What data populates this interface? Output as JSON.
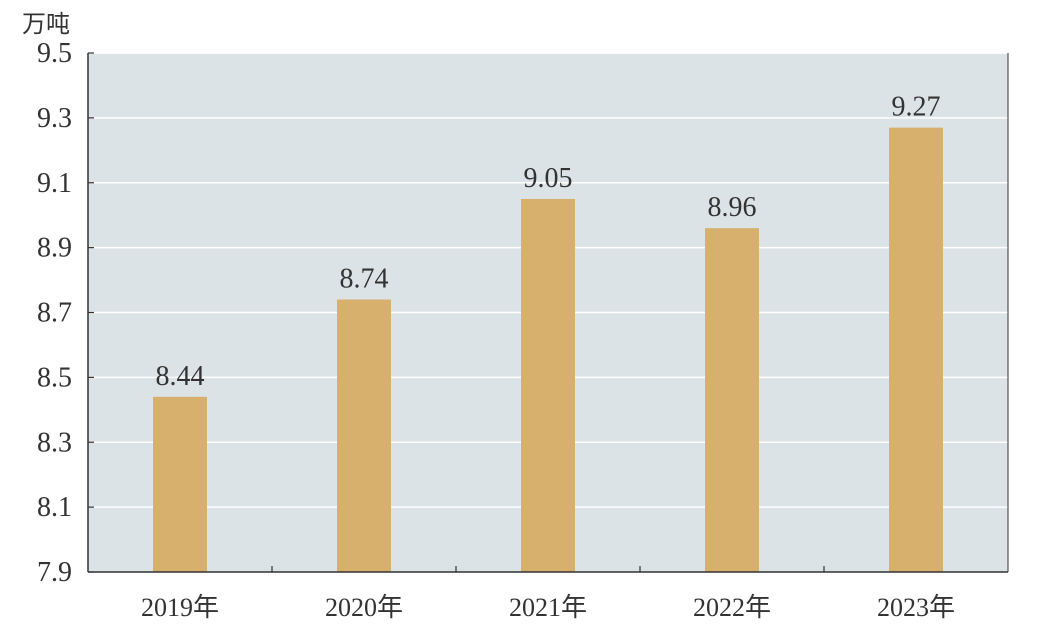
{
  "chart_data": {
    "type": "bar",
    "title": "",
    "xlabel": "",
    "ylabel": "万吨",
    "categories": [
      "2019年",
      "2020年",
      "2021年",
      "2022年",
      "2023年"
    ],
    "values": [
      8.44,
      8.74,
      9.05,
      8.96,
      9.27
    ],
    "value_labels": [
      "8.44",
      "8.74",
      "9.05",
      "8.96",
      "9.27"
    ],
    "ylim": [
      7.9,
      9.5
    ],
    "yticks": [
      7.9,
      8.1,
      8.3,
      8.5,
      8.7,
      8.9,
      9.1,
      9.3,
      9.5
    ],
    "ytick_labels": [
      "7.9",
      "8.1",
      "8.3",
      "8.5",
      "8.7",
      "8.9",
      "9.1",
      "9.3",
      "9.5"
    ],
    "grid": true,
    "legend": "none",
    "colors": {
      "bar": "#d6b06c",
      "plot_background": "#dce3e6",
      "gridline": "#ffffff",
      "axis": "#333333",
      "text": "#333333"
    }
  }
}
